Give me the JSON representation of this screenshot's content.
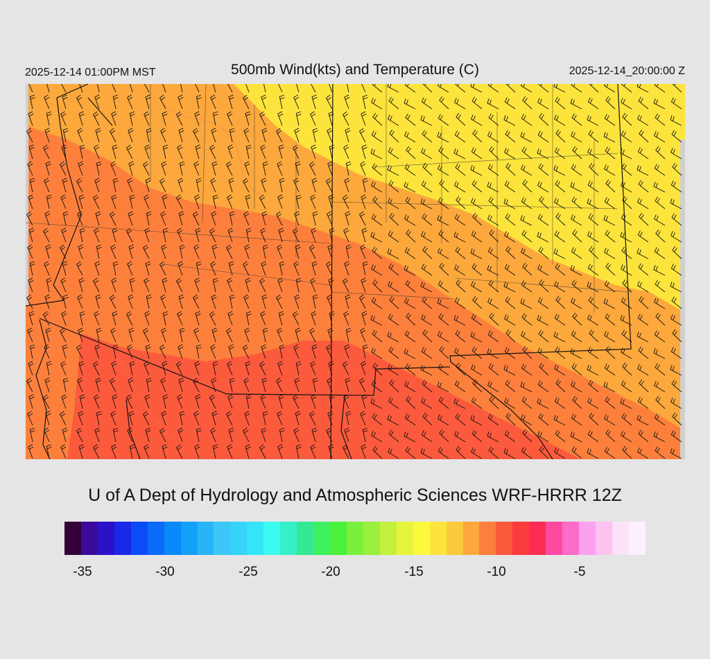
{
  "header": {
    "valid_local": "2025-12-14 01:00PM MST",
    "title": "500mb Wind(kts) and Temperature (C)",
    "valid_utc": "2025-12-14_20:00:00 Z"
  },
  "footer": {
    "credit": "U of A Dept of Hydrology and Atmospheric Sciences WRF-HRRR 12Z"
  },
  "colorbar": {
    "colors": [
      "#33003a",
      "#3a0a9a",
      "#2a12c8",
      "#1a28e8",
      "#0a4cf8",
      "#0a6cf8",
      "#0a8af8",
      "#12a0f8",
      "#2ab4f8",
      "#3ec6f8",
      "#36d4f8",
      "#34e4f8",
      "#3cfaf0",
      "#36f0c8",
      "#34e894",
      "#3cf060",
      "#4af03c",
      "#7af03c",
      "#9af03c",
      "#c2f03c",
      "#e6f43c",
      "#fcf83c",
      "#fce43c",
      "#fcc83c",
      "#fca83c",
      "#fc803c",
      "#fc5a3c",
      "#fc3c3c",
      "#fc2c54",
      "#fc4aa0",
      "#fc6cc8",
      "#fca0f0",
      "#fcc2f0",
      "#fce2f8",
      "#fcf0fc"
    ],
    "tick_labels": [
      "-35",
      "-30",
      "-25",
      "-20",
      "-15",
      "-10",
      "-5"
    ]
  },
  "map": {
    "field": "500mb temperature (C) with wind barbs (kts)",
    "colors_present": {
      "coldest_band": "#fc5a3c",
      "mid_band": "#fc803c",
      "warm_band": "#fca83c",
      "warmest_band": "#fce43c"
    },
    "contour_color": "#ff7060"
  }
}
